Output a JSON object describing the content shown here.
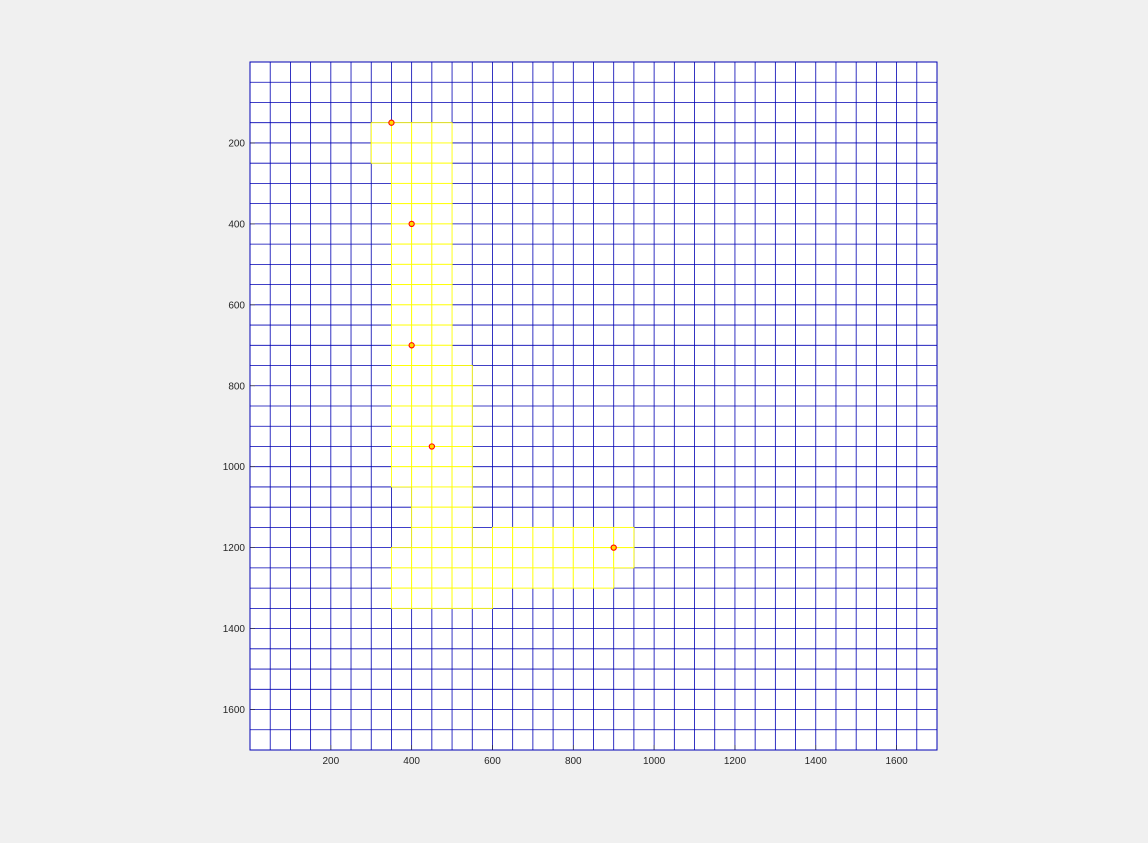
{
  "chart_data": {
    "type": "heatmap",
    "title": "",
    "xlabel": "",
    "ylabel": "",
    "xlim": [
      0,
      1700
    ],
    "ylim": [
      0,
      1700
    ],
    "y_reversed": true,
    "grid_cell_size": 50,
    "x_ticks": [
      200,
      400,
      600,
      800,
      1000,
      1200,
      1400,
      1600
    ],
    "y_ticks": [
      200,
      400,
      600,
      800,
      1000,
      1200,
      1400,
      1600
    ],
    "colors": {
      "grid_line": "#0000b3",
      "highlight_line": "#ffff00",
      "highlight_fill": "#ffffff",
      "plot_background": "#ffffff",
      "marker_stroke": "#ff0000",
      "marker_fill": "#ffdd00"
    },
    "highlighted_regions": [
      {
        "x_range": [
          300,
          350
        ],
        "y_range": [
          150,
          250
        ]
      },
      {
        "x_range": [
          350,
          500
        ],
        "y_range": [
          150,
          750
        ]
      },
      {
        "x_range": [
          350,
          550
        ],
        "y_range": [
          750,
          1050
        ]
      },
      {
        "x_range": [
          400,
          550
        ],
        "y_range": [
          1050,
          1200
        ]
      },
      {
        "x_range": [
          350,
          600
        ],
        "y_range": [
          1200,
          1350
        ]
      },
      {
        "x_range": [
          600,
          950
        ],
        "y_range": [
          1150,
          1250
        ]
      },
      {
        "x_range": [
          600,
          850
        ],
        "y_range": [
          1250,
          1300
        ]
      },
      {
        "x_range": [
          850,
          900
        ],
        "y_range": [
          1250,
          1300
        ]
      }
    ],
    "points": [
      {
        "x": 350,
        "y": 150
      },
      {
        "x": 400,
        "y": 400
      },
      {
        "x": 400,
        "y": 700
      },
      {
        "x": 450,
        "y": 950
      },
      {
        "x": 900,
        "y": 1200
      }
    ]
  }
}
